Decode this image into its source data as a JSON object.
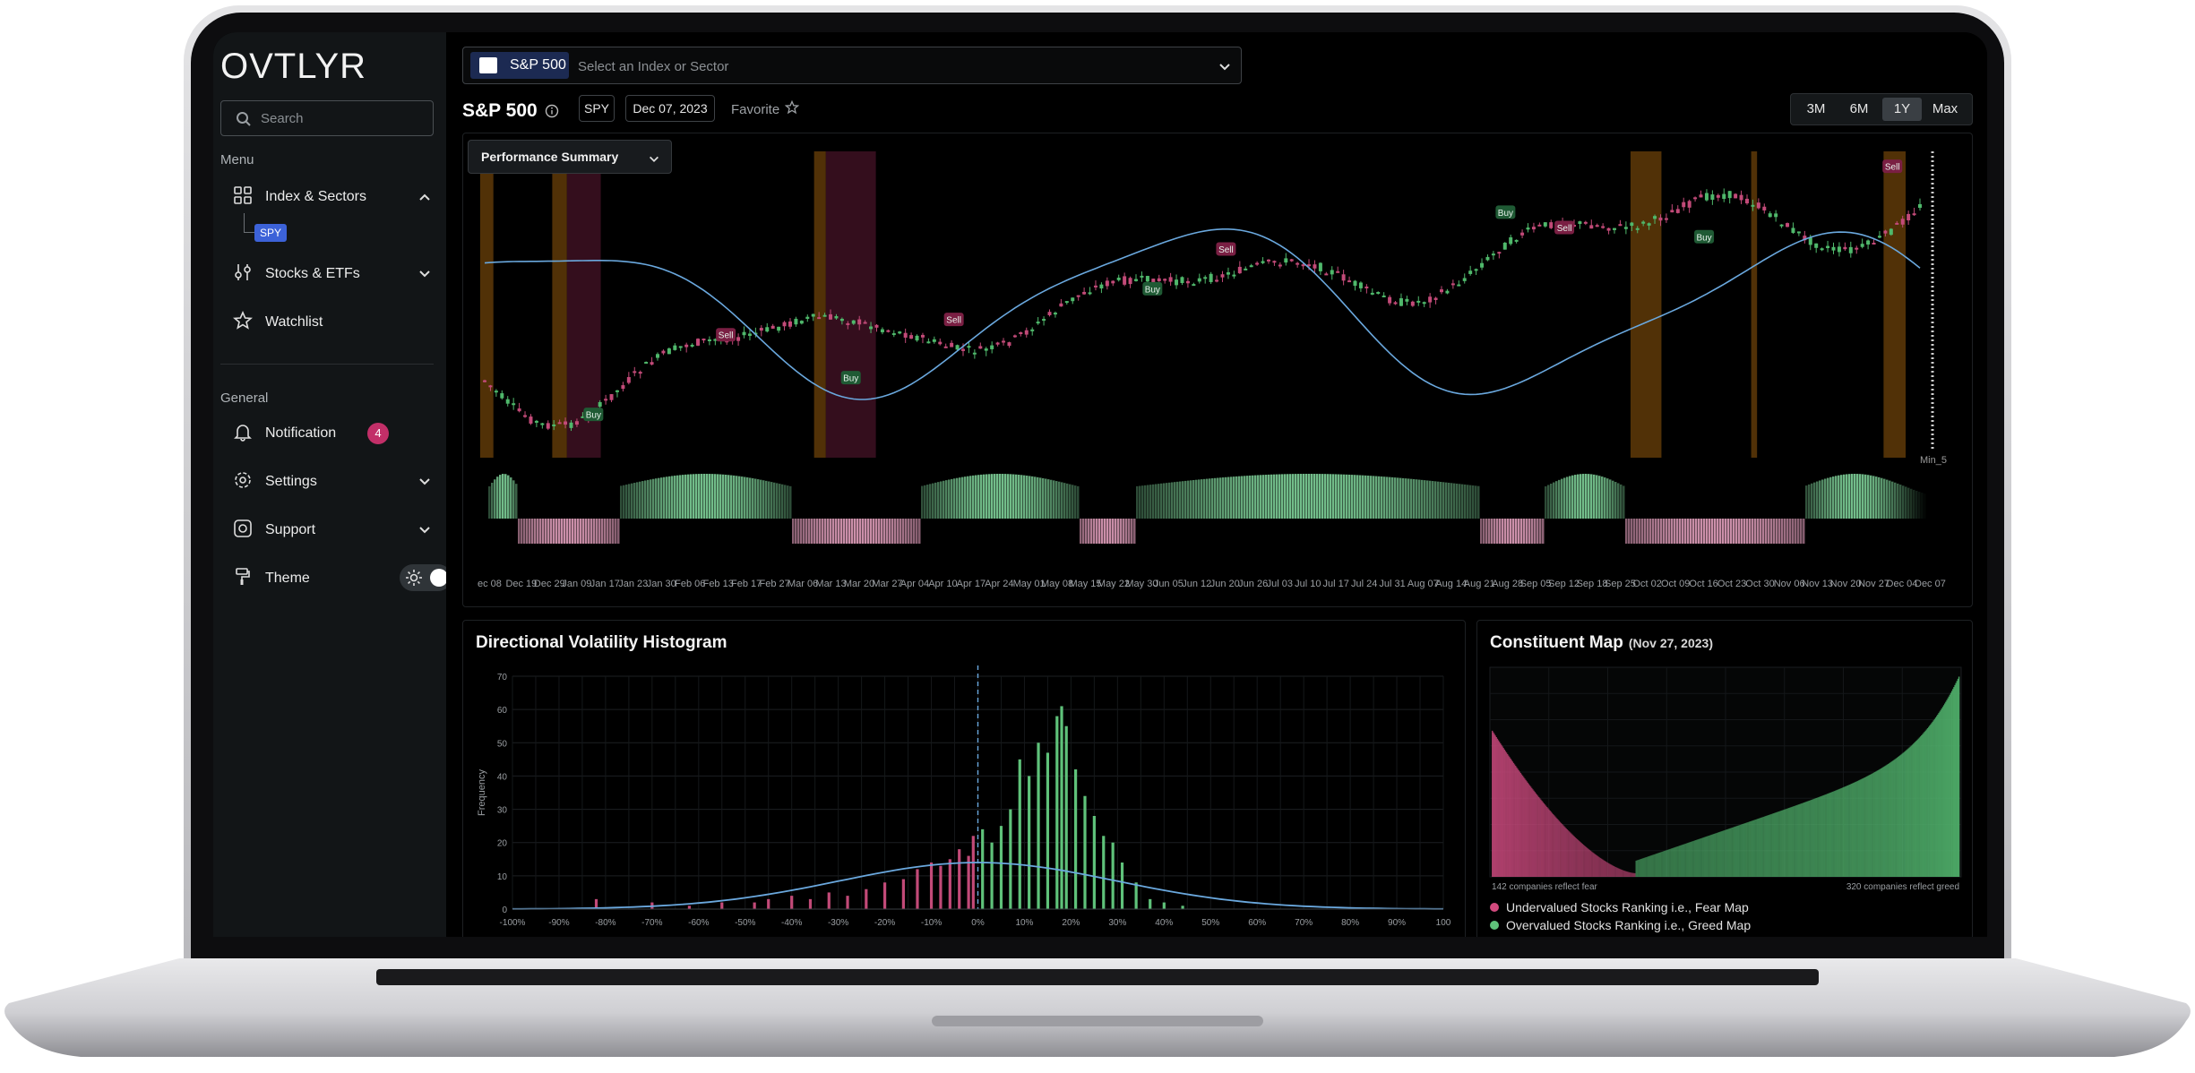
{
  "sidebar": {
    "logo": "OVTLYR",
    "search_placeholder": "Search",
    "menu_label": "Menu",
    "general_label": "General",
    "items": [
      {
        "label": "Index & Sectors"
      },
      {
        "label": "Stocks & ETFs"
      },
      {
        "label": "Watchlist"
      },
      {
        "label": "Notification",
        "badge": "4"
      },
      {
        "label": "Settings"
      },
      {
        "label": "Support"
      },
      {
        "label": "Theme"
      }
    ],
    "sub_item": "SPY"
  },
  "header": {
    "selected_index": "S&P 500",
    "selector_placeholder": "Select an Index or Sector",
    "title": "S&P 500",
    "ticker": "SPY",
    "date": "Dec 07, 2023",
    "favorite": "Favorite",
    "ranges": [
      "3M",
      "6M",
      "1Y",
      "Max"
    ],
    "active_range": "1Y"
  },
  "main_chart": {
    "dropdown_label": "Performance Summary",
    "axis_corner_label": "Min_5",
    "signals": [
      {
        "type": "Buy"
      },
      {
        "type": "Sell"
      },
      {
        "type": "Buy"
      },
      {
        "type": "Sell"
      },
      {
        "type": "Buy"
      },
      {
        "type": "Sell"
      },
      {
        "type": "Buy"
      },
      {
        "type": "Sell"
      },
      {
        "type": "Buy"
      },
      {
        "type": "Sell"
      }
    ],
    "x_ticks": [
      "ec 08",
      "Dec 19",
      "Dec 29",
      "Jan 09",
      "Jan 17",
      "Jan 23",
      "Jan 30",
      "Feb 06",
      "Feb 13",
      "Feb 17",
      "Feb 27",
      "Mar 06",
      "Mar 13",
      "Mar 20",
      "Mar 27",
      "Apr 04",
      "Apr 10",
      "Apr 17",
      "Apr 24",
      "May 01",
      "May 08",
      "May 15",
      "May 22",
      "May 30",
      "Jun 05",
      "Jun 12",
      "Jun 20",
      "Jun 26",
      "Jul 03",
      "Jul 10",
      "Jul 17",
      "Jul 24",
      "Jul 31",
      "Aug 07",
      "Aug 14",
      "Aug 21",
      "Aug 28",
      "Sep 05",
      "Sep 12",
      "Sep 18",
      "Sep 25",
      "Oct 02",
      "Oct 09",
      "Oct 16",
      "Oct 23",
      "Oct 30",
      "Nov 06",
      "Nov 13",
      "Nov 20",
      "Nov 27",
      "Dec 04",
      "Dec 07"
    ]
  },
  "histogram": {
    "title": "Directional Volatility Histogram",
    "ylabel": "Frequency",
    "y_ticks": [
      "70",
      "60",
      "50",
      "40",
      "30",
      "20",
      "10",
      "0"
    ],
    "x_ticks": [
      "-100%",
      "-90%",
      "-80%",
      "-70%",
      "-60%",
      "-50%",
      "-40%",
      "-30%",
      "-20%",
      "-10%",
      "0%",
      "10%",
      "20%",
      "30%",
      "40%",
      "50%",
      "60%",
      "70%",
      "80%",
      "90%",
      "100"
    ]
  },
  "constituent_map": {
    "title": "Constituent Map",
    "date": "(Nov 27, 2023)",
    "left_caption": "142 companies reflect fear",
    "right_caption": "320 companies reflect greed",
    "legend": [
      {
        "label": "Undervalued Stocks Ranking i.e., Fear Map",
        "color": "#d24a7e"
      },
      {
        "label": "Overvalued Stocks Ranking i.e., Greed Map",
        "color": "#5fc27a"
      }
    ]
  },
  "chart_data": [
    {
      "type": "histogram",
      "title": "Directional Volatility Histogram",
      "ylabel": "Frequency",
      "xlim": [
        -100,
        100
      ],
      "ylim": [
        0,
        70
      ],
      "bins": [
        {
          "x": -82,
          "y": 3
        },
        {
          "x": -70,
          "y": 2
        },
        {
          "x": -62,
          "y": 1
        },
        {
          "x": -55,
          "y": 2
        },
        {
          "x": -48,
          "y": 2
        },
        {
          "x": -45,
          "y": 3
        },
        {
          "x": -40,
          "y": 4
        },
        {
          "x": -36,
          "y": 3
        },
        {
          "x": -32,
          "y": 5
        },
        {
          "x": -28,
          "y": 4
        },
        {
          "x": -24,
          "y": 6
        },
        {
          "x": -20,
          "y": 8
        },
        {
          "x": -16,
          "y": 9
        },
        {
          "x": -13,
          "y": 12
        },
        {
          "x": -10,
          "y": 14
        },
        {
          "x": -8,
          "y": 13
        },
        {
          "x": -6,
          "y": 15
        },
        {
          "x": -4,
          "y": 18
        },
        {
          "x": -2,
          "y": 16
        },
        {
          "x": -1,
          "y": 22
        },
        {
          "x": 1,
          "y": 24
        },
        {
          "x": 3,
          "y": 20
        },
        {
          "x": 5,
          "y": 25
        },
        {
          "x": 7,
          "y": 30
        },
        {
          "x": 9,
          "y": 45
        },
        {
          "x": 11,
          "y": 40
        },
        {
          "x": 13,
          "y": 50
        },
        {
          "x": 15,
          "y": 47
        },
        {
          "x": 17,
          "y": 58
        },
        {
          "x": 18,
          "y": 61
        },
        {
          "x": 19,
          "y": 55
        },
        {
          "x": 21,
          "y": 42
        },
        {
          "x": 23,
          "y": 34
        },
        {
          "x": 25,
          "y": 28
        },
        {
          "x": 27,
          "y": 22
        },
        {
          "x": 29,
          "y": 20
        },
        {
          "x": 31,
          "y": 14
        },
        {
          "x": 34,
          "y": 8
        },
        {
          "x": 37,
          "y": 3
        },
        {
          "x": 40,
          "y": 2
        },
        {
          "x": 44,
          "y": 1
        }
      ]
    },
    {
      "type": "area",
      "title": "Constituent Map",
      "series": [
        {
          "name": "Undervalued Stocks Ranking i.e., Fear Map",
          "count": 142
        },
        {
          "name": "Overvalued Stocks Ranking i.e., Greed Map",
          "count": 320
        }
      ]
    }
  ]
}
